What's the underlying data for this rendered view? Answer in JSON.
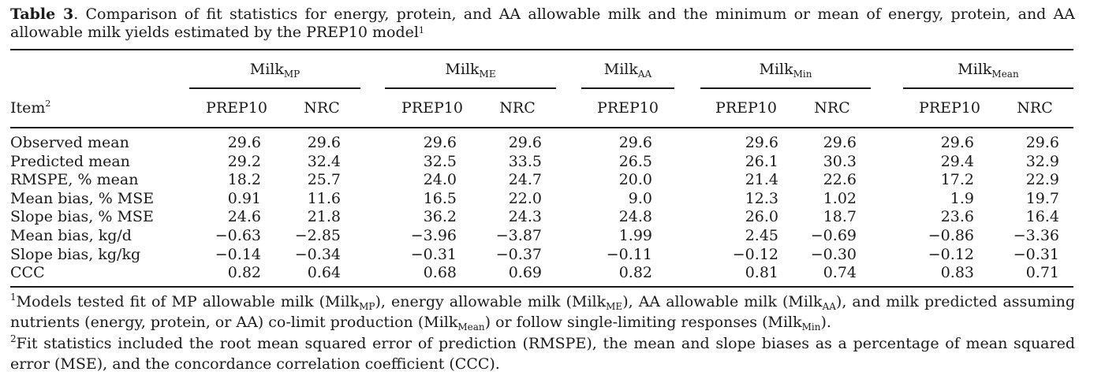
{
  "caption": {
    "label": "Table 3",
    "text": ". Comparison of fit statistics for energy, protein, and AA allowable milk and the minimum or mean of energy, protein, and AA allowable milk yields estimated by the PREP10 model",
    "footnote_mark": "1"
  },
  "header": {
    "item_label": "Item",
    "item_mark": "2",
    "groups": [
      {
        "main": "Milk",
        "sub": "MP",
        "columns": [
          "PREP10",
          "NRC"
        ]
      },
      {
        "main": "Milk",
        "sub": "ME",
        "columns": [
          "PREP10",
          "NRC"
        ]
      },
      {
        "main": "Milk",
        "sub": "AA",
        "columns": [
          "PREP10"
        ]
      },
      {
        "main": "Milk",
        "sub": "Min",
        "columns": [
          "PREP10",
          "NRC"
        ]
      },
      {
        "main": "Milk",
        "sub": "Mean",
        "columns": [
          "PREP10",
          "NRC"
        ]
      }
    ]
  },
  "rows": [
    {
      "item": "Observed mean",
      "values": [
        "29.6",
        "29.6",
        "29.6",
        "29.6",
        "29.6",
        "29.6",
        "29.6",
        "29.6",
        "29.6"
      ]
    },
    {
      "item": "Predicted mean",
      "values": [
        "29.2",
        "32.4",
        "32.5",
        "33.5",
        "26.5",
        "26.1",
        "30.3",
        "29.4",
        "32.9"
      ]
    },
    {
      "item": "RMSPE, % mean",
      "values": [
        "18.2",
        "25.7",
        "24.0",
        "24.7",
        "20.0",
        "21.4",
        "22.6",
        "17.2",
        "22.9"
      ]
    },
    {
      "item": "Mean bias, % MSE",
      "values": [
        "0.91",
        "11.6",
        "16.5",
        "22.0",
        "9.0",
        "12.3",
        "1.02",
        "1.9",
        "19.7"
      ]
    },
    {
      "item": "Slope bias, % MSE",
      "values": [
        "24.6",
        "21.8",
        "36.2",
        "24.3",
        "24.8",
        "26.0",
        "18.7",
        "23.6",
        "16.4"
      ]
    },
    {
      "item": "Mean bias, kg/d",
      "values": [
        "−0.63",
        "−2.85",
        "−3.96",
        "−3.87",
        "1.99",
        "2.45",
        "−0.69",
        "−0.86",
        "−3.36"
      ]
    },
    {
      "item": "Slope bias, kg/kg",
      "values": [
        "−0.14",
        "−0.34",
        "−0.31",
        "−0.37",
        "−0.11",
        "−0.12",
        "−0.30",
        "−0.12",
        "−0.31"
      ]
    },
    {
      "item": "CCC",
      "values": [
        "0.82",
        "0.64",
        "0.68",
        "0.69",
        "0.82",
        "0.81",
        "0.74",
        "0.83",
        "0.71"
      ]
    }
  ],
  "footnotes": [
    {
      "mark": "1",
      "parts": [
        {
          "t": "Models tested fit of MP allowable milk (Milk"
        },
        {
          "sub": "MP"
        },
        {
          "t": "), energy allowable milk (Milk"
        },
        {
          "sub": "ME"
        },
        {
          "t": "), AA allowable milk (Milk"
        },
        {
          "sub": "AA"
        },
        {
          "t": "), and milk predicted assuming nutrients (energy, protein, or AA) co-limit production (Milk"
        },
        {
          "sub": "Mean"
        },
        {
          "t": ") or follow single-limiting responses (Milk"
        },
        {
          "sub": "Min"
        },
        {
          "t": ")."
        }
      ]
    },
    {
      "mark": "2",
      "parts": [
        {
          "t": "Fit statistics included the root mean squared error of prediction (RMSPE), the mean and slope biases as a percentage of mean squared error (MSE), and the concordance correlation coefficient (CCC)."
        }
      ]
    }
  ]
}
